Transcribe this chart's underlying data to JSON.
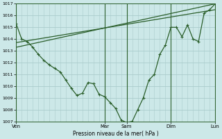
{
  "xlabel": "Pression niveau de la mer( hPa )",
  "ylim": [
    1007,
    1017
  ],
  "yticks": [
    1007,
    1008,
    1009,
    1010,
    1011,
    1012,
    1013,
    1014,
    1015,
    1016,
    1017
  ],
  "day_labels": [
    "Ven",
    "Mar",
    "Sam",
    "Dim",
    "Lun"
  ],
  "day_positions": [
    0,
    96,
    120,
    168,
    216
  ],
  "xlim": [
    0,
    216
  ],
  "bg_color": "#cce8e8",
  "grid_color": "#aacccc",
  "line_color": "#2a5e2a",
  "line1_x": [
    0,
    6,
    12,
    18,
    24,
    30,
    36,
    42,
    48,
    54,
    60,
    66,
    72,
    78,
    84,
    90,
    96,
    102,
    108,
    114,
    120,
    126,
    132,
    138,
    144,
    150,
    156,
    162,
    168,
    174,
    180,
    186,
    192,
    198,
    204,
    210,
    216
  ],
  "line1_y": [
    1015.3,
    1014.0,
    1013.8,
    1013.3,
    1012.7,
    1012.2,
    1011.8,
    1011.5,
    1011.2,
    1010.5,
    1009.8,
    1009.2,
    1009.4,
    1010.3,
    1010.2,
    1009.3,
    1009.1,
    1008.6,
    1008.1,
    1007.1,
    1006.9,
    1007.0,
    1008.0,
    1009.0,
    1010.5,
    1011.0,
    1012.7,
    1013.5,
    1015.0,
    1015.0,
    1014.2,
    1015.2,
    1014.0,
    1013.8,
    1016.2,
    1016.5,
    1017.0
  ],
  "line2_x": [
    0,
    216
  ],
  "line2_y": [
    1013.7,
    1016.5
  ],
  "line3_x": [
    0,
    216
  ],
  "line3_y": [
    1013.3,
    1017.0
  ]
}
